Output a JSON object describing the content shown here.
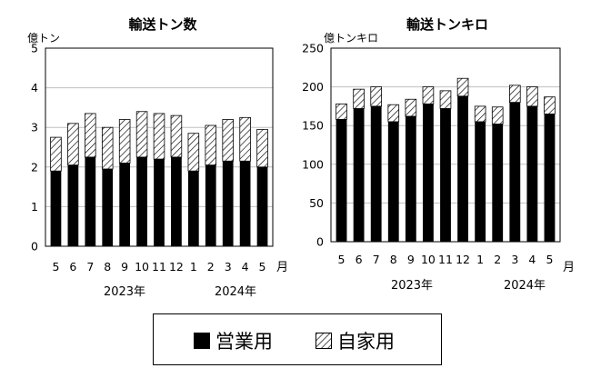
{
  "legend": {
    "commercial": "営業用",
    "private": "自家用"
  },
  "colors": {
    "commercial": "#000000",
    "private_hatch": "#000000",
    "grid": "#bfbfbf"
  },
  "x_categories": [
    "5",
    "6",
    "7",
    "8",
    "9",
    "10",
    "11",
    "12",
    "1",
    "2",
    "3",
    "4",
    "5"
  ],
  "month_unit": "月",
  "year_labels": [
    "2023年",
    "2024年"
  ],
  "chart_data": [
    {
      "type": "bar",
      "stacked": true,
      "title": "輸送トン数",
      "ylabel": "億トン",
      "ylim": [
        0,
        5
      ],
      "yticks": [
        0,
        1,
        2,
        3,
        4,
        5
      ],
      "grid": true,
      "categories": [
        "5",
        "6",
        "7",
        "8",
        "9",
        "10",
        "11",
        "12",
        "1",
        "2",
        "3",
        "4",
        "5"
      ],
      "series": [
        {
          "name": "営業用",
          "values": [
            1.9,
            2.05,
            2.25,
            1.95,
            2.1,
            2.25,
            2.2,
            2.25,
            1.9,
            2.05,
            2.15,
            2.15,
            2.0
          ]
        },
        {
          "name": "自家用",
          "values": [
            0.85,
            1.05,
            1.1,
            1.05,
            1.1,
            1.15,
            1.15,
            1.05,
            0.95,
            1.0,
            1.05,
            1.1,
            0.95
          ]
        }
      ]
    },
    {
      "type": "bar",
      "stacked": true,
      "title": "輸送トンキロ",
      "ylabel": "億トンキロ",
      "ylim": [
        0,
        250
      ],
      "yticks": [
        0,
        50,
        100,
        150,
        200,
        250
      ],
      "grid": true,
      "categories": [
        "5",
        "6",
        "7",
        "8",
        "9",
        "10",
        "11",
        "12",
        "1",
        "2",
        "3",
        "4",
        "5"
      ],
      "series": [
        {
          "name": "営業用",
          "values": [
            158,
            172,
            175,
            155,
            162,
            178,
            172,
            188,
            155,
            152,
            180,
            175,
            165
          ]
        },
        {
          "name": "自家用",
          "values": [
            20,
            25,
            25,
            22,
            22,
            22,
            23,
            23,
            20,
            22,
            22,
            25,
            22
          ]
        }
      ]
    }
  ]
}
